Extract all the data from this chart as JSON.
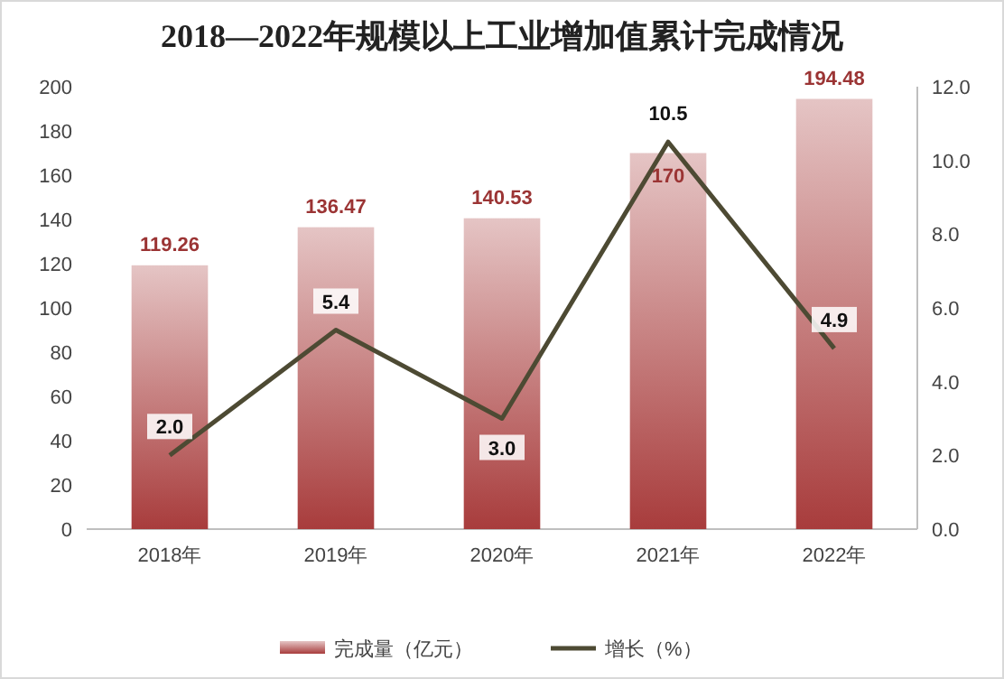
{
  "chart_data": {
    "type": "bar",
    "title": "2018—2022年规模以上工业增加值累计完成情况",
    "categories": [
      "2018年",
      "2019年",
      "2020年",
      "2021年",
      "2022年"
    ],
    "series": [
      {
        "name": "完成量（亿元）",
        "color": "#a83c3c",
        "values": [
          119.26,
          136.47,
          140.53,
          170,
          194.48
        ],
        "value_labels": [
          "119.26",
          "136.47",
          "140.53",
          "170",
          "194.48"
        ]
      },
      {
        "name": "增长（%）",
        "type": "line",
        "axis": "y2",
        "color": "#4d4a33",
        "values": [
          2.0,
          5.4,
          3.0,
          10.5,
          4.9
        ],
        "value_labels": [
          "2.0",
          "5.4",
          "3.0",
          "10.5",
          "4.9"
        ]
      }
    ],
    "ylim": [
      0,
      200
    ],
    "yticks": [
      0,
      20,
      40,
      60,
      80,
      100,
      120,
      140,
      160,
      180,
      200
    ],
    "y2lim": [
      0,
      12
    ],
    "y2ticks": [
      {
        "value": 0,
        "label": "0.0"
      },
      {
        "value": 2,
        "label": "2.0"
      },
      {
        "value": 4,
        "label": "4.0"
      },
      {
        "value": 6,
        "label": "6.0"
      },
      {
        "value": 8,
        "label": "8.0"
      },
      {
        "value": 10,
        "label": "10.0"
      },
      {
        "value": 12,
        "label": "12.0"
      }
    ],
    "legend": "bottom",
    "marker": "none",
    "line_style": "solid"
  }
}
